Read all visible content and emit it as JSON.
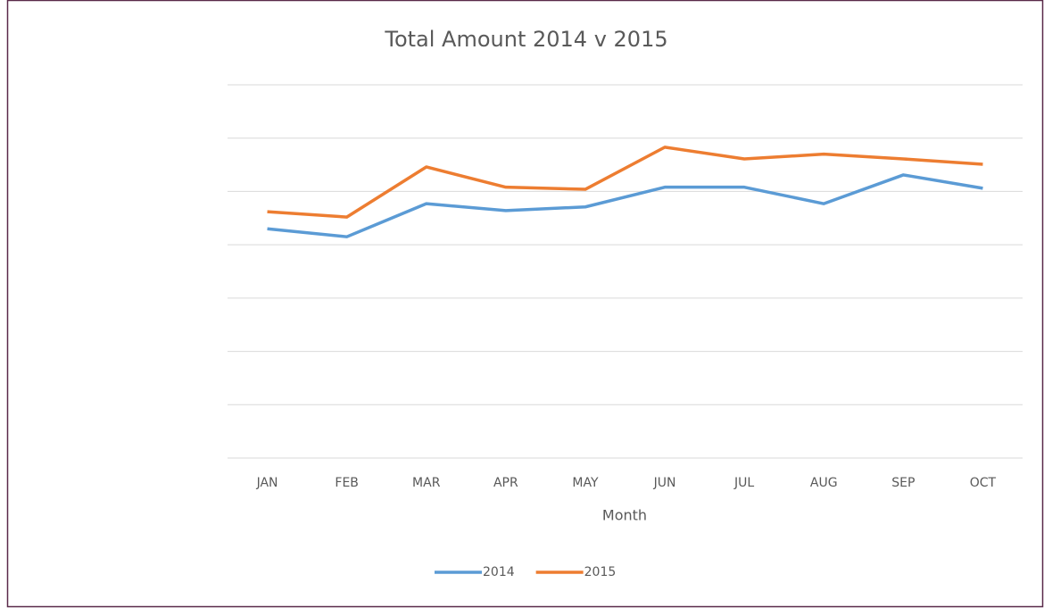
{
  "chart_data": {
    "type": "line",
    "title": "Total Amount 2014 v 2015",
    "x_label": "Month",
    "categories": [
      "JAN",
      "FEB",
      "MAR",
      "APR",
      "MAY",
      "JUN",
      "JUL",
      "AUG",
      "SEP",
      "OCT"
    ],
    "series": [
      {
        "name": "2014",
        "color": "#5b9bd5",
        "values": [
          4.3,
          4.15,
          4.77,
          4.64,
          4.71,
          5.08,
          5.08,
          4.77,
          5.31,
          5.06
        ]
      },
      {
        "name": "2015",
        "color": "#ed7d31",
        "values": [
          4.62,
          4.52,
          5.46,
          5.08,
          5.04,
          5.83,
          5.61,
          5.7,
          5.61,
          5.51
        ]
      }
    ],
    "ylim": [
      0,
      7
    ],
    "yticks": [
      0,
      1,
      2,
      3,
      4,
      5,
      6,
      7
    ],
    "grid": true,
    "legend": "bottom"
  }
}
